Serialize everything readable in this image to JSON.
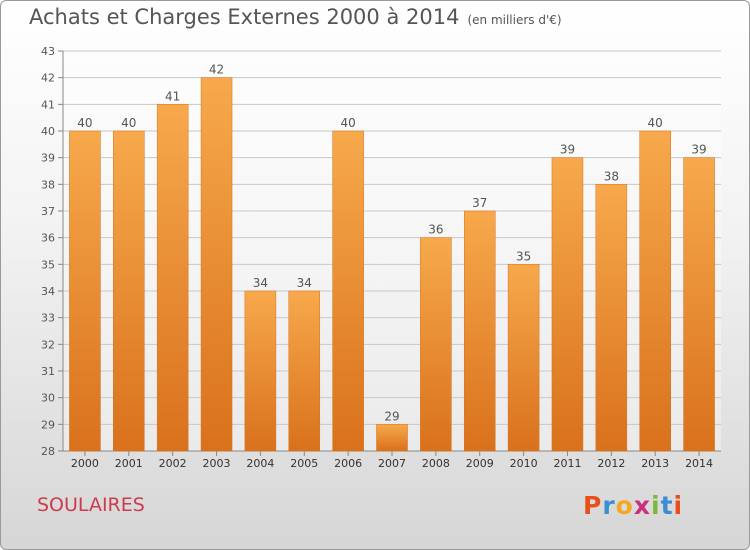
{
  "title": "Achats et Charges Externes 2000 à 2014",
  "unit": "(en milliers d'€)",
  "commune": "SOULAIRES",
  "logo": {
    "letters": [
      "P",
      "r",
      "o",
      "x",
      "i",
      "t",
      "i"
    ],
    "colors": [
      "#e94e1b",
      "#3a8fd2",
      "#f5a623",
      "#cc2f7d",
      "#7bb93a",
      "#3a8fd2",
      "#e94e1b"
    ]
  },
  "colors": {
    "bar_light": "#f7a94c",
    "bar_dark": "#d9711c",
    "grid": "#c8c8c8",
    "text": "#555555"
  },
  "chart_data": {
    "type": "bar",
    "categories": [
      "2000",
      "2001",
      "2002",
      "2003",
      "2004",
      "2005",
      "2006",
      "2007",
      "2008",
      "2009",
      "2010",
      "2011",
      "2012",
      "2013",
      "2014"
    ],
    "values": [
      40,
      40,
      41,
      42,
      34,
      34,
      40,
      29,
      36,
      37,
      35,
      39,
      38,
      40,
      39
    ],
    "yticks": [
      28,
      29,
      30,
      31,
      32,
      33,
      34,
      35,
      36,
      37,
      38,
      39,
      40,
      41,
      42,
      43
    ],
    "ylim": [
      28,
      43
    ],
    "grid": true
  }
}
